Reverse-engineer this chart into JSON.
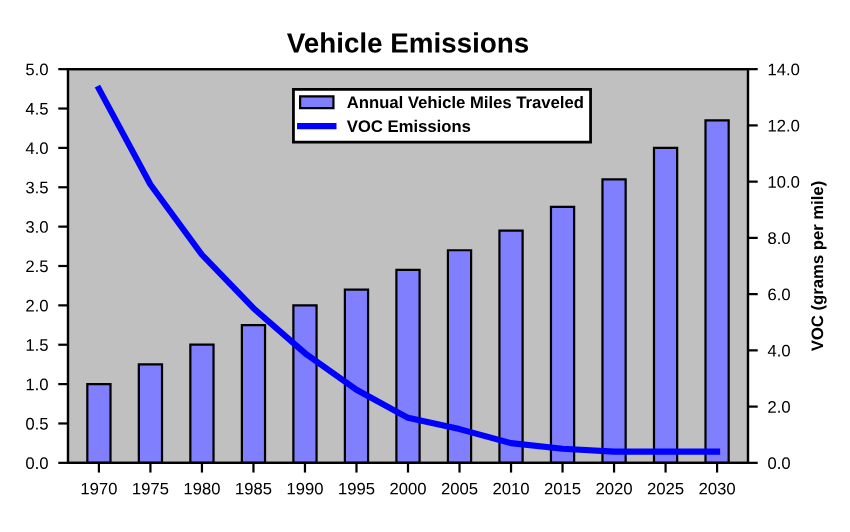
{
  "chart_data": {
    "type": "bar",
    "title": "Vehicle Emissions",
    "y2label": "VOC (grams per mile)",
    "categories": [
      "1970",
      "1975",
      "1980",
      "1985",
      "1990",
      "1995",
      "2000",
      "2005",
      "2010",
      "2015",
      "2020",
      "2025",
      "2030"
    ],
    "series": [
      {
        "name": "Annual Vehicle Miles Traveled",
        "color": "#8080ff",
        "values": [
          1.0,
          1.25,
          1.5,
          1.75,
          2.0,
          2.2,
          2.45,
          2.7,
          2.95,
          3.25,
          3.6,
          4.0,
          4.35
        ]
      },
      {
        "name": "VOC Emissions",
        "type": "line",
        "axis": "y2",
        "color": "#0000ff",
        "values": [
          13.3,
          9.9,
          7.4,
          5.5,
          3.9,
          2.6,
          1.6,
          1.2,
          0.7,
          0.5,
          0.4,
          0.4,
          0.4
        ]
      }
    ],
    "ylim": [
      0,
      5
    ],
    "yticks": [
      {
        "value": 0,
        "label": "0.0"
      },
      {
        "value": 0.5,
        "label": "0.5"
      },
      {
        "value": 1,
        "label": "1.0"
      },
      {
        "value": 1.5,
        "label": "1.5"
      },
      {
        "value": 2,
        "label": "2.0"
      },
      {
        "value": 2.5,
        "label": "2.5"
      },
      {
        "value": 3,
        "label": "3.0"
      },
      {
        "value": 3.5,
        "label": "3.5"
      },
      {
        "value": 4,
        "label": "4.0"
      },
      {
        "value": 4.5,
        "label": "4.5"
      },
      {
        "value": 5,
        "label": "5.0"
      }
    ],
    "y2lim": [
      0,
      14
    ],
    "y2ticks": [
      {
        "value": 0,
        "label": "0.0"
      },
      {
        "value": 2,
        "label": "2.0"
      },
      {
        "value": 4,
        "label": "4.0"
      },
      {
        "value": 6,
        "label": "6.0"
      },
      {
        "value": 8,
        "label": "8.0"
      },
      {
        "value": 10,
        "label": "10.0"
      },
      {
        "value": 12,
        "label": "12.0"
      },
      {
        "value": 14,
        "label": "14.0"
      }
    ],
    "legend": "top",
    "grid": false
  }
}
